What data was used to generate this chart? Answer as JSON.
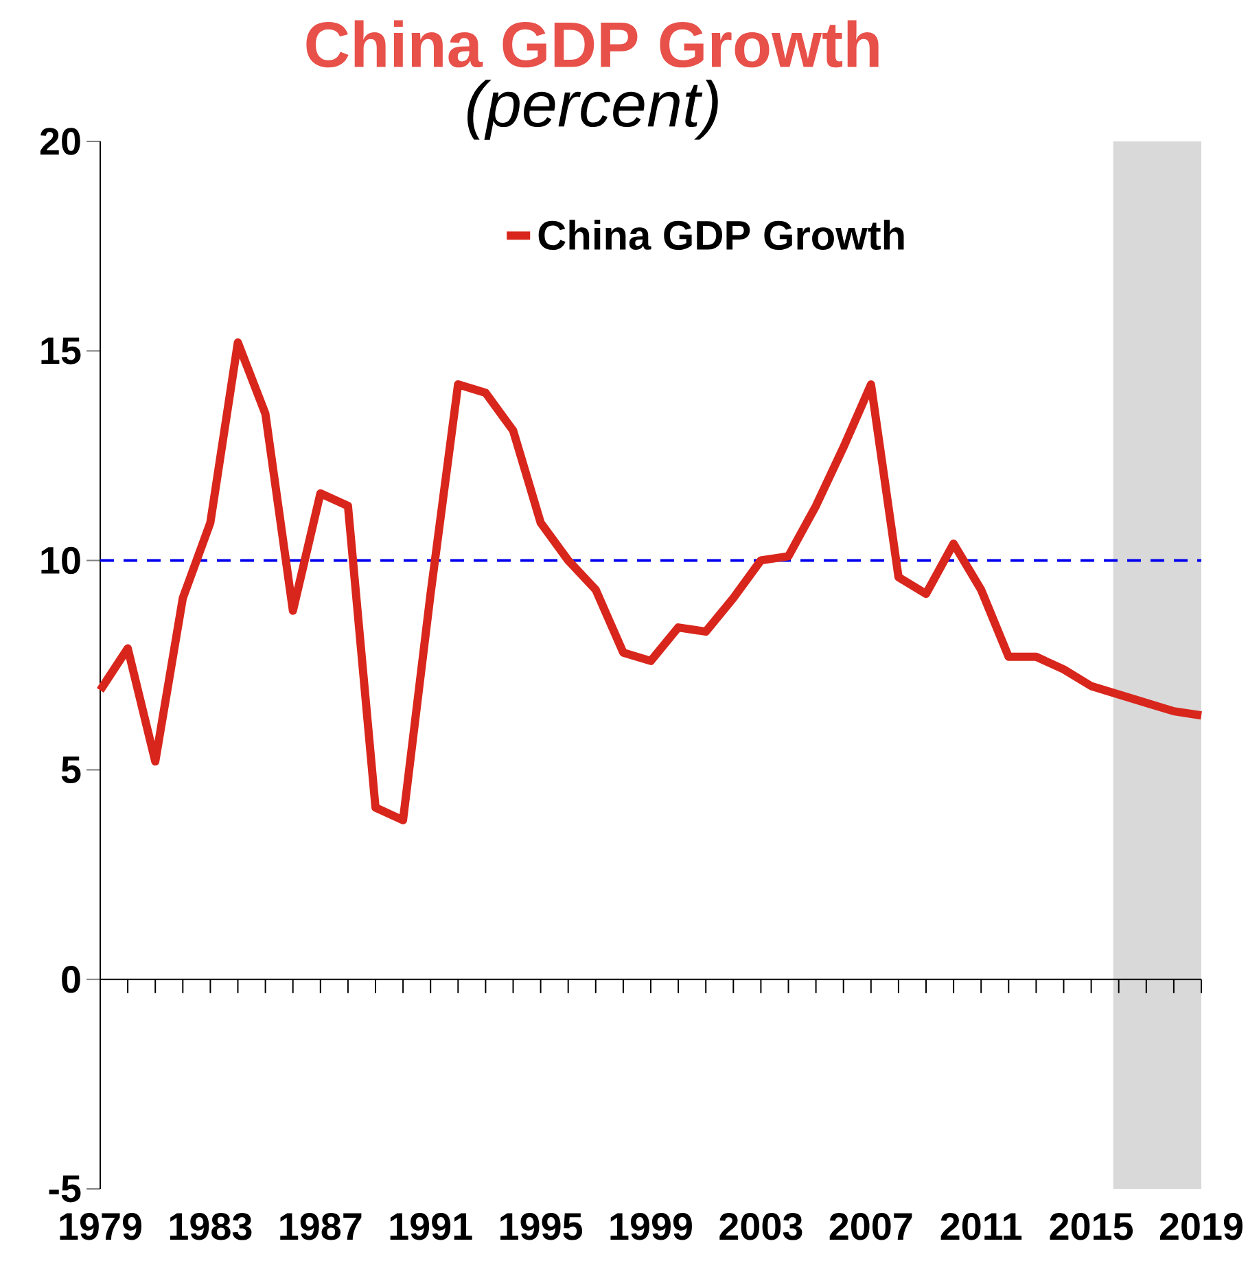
{
  "chart_data": {
    "type": "line",
    "title": "China GDP Growth",
    "subtitle": "(percent)",
    "x": [
      1979,
      1980,
      1981,
      1982,
      1983,
      1984,
      1985,
      1986,
      1987,
      1988,
      1989,
      1990,
      1991,
      1992,
      1993,
      1994,
      1995,
      1996,
      1997,
      1998,
      1999,
      2000,
      2001,
      2002,
      2003,
      2004,
      2005,
      2006,
      2007,
      2008,
      2009,
      2010,
      2011,
      2012,
      2013,
      2014,
      2015,
      2016,
      2017,
      2018,
      2019
    ],
    "series": [
      {
        "name": "China GDP Growth",
        "color": "#d9261c",
        "values": [
          6.9,
          7.9,
          5.2,
          9.1,
          10.9,
          15.2,
          13.5,
          8.8,
          11.6,
          11.3,
          4.1,
          3.8,
          9.2,
          14.2,
          14.0,
          13.1,
          10.9,
          10.0,
          9.3,
          7.8,
          7.6,
          8.4,
          8.3,
          9.1,
          10.0,
          10.1,
          11.3,
          12.7,
          14.2,
          9.6,
          9.2,
          10.4,
          9.3,
          7.7,
          7.7,
          7.4,
          7.0,
          6.8,
          6.6,
          6.4,
          6.3
        ]
      }
    ],
    "xlim": [
      1979,
      2019
    ],
    "ylim": [
      -5,
      20
    ],
    "xticks": [
      {
        "value": 1979,
        "label": "1979"
      },
      {
        "value": 1980,
        "label": null
      },
      {
        "value": 1981,
        "label": null
      },
      {
        "value": 1982,
        "label": null
      },
      {
        "value": 1983,
        "label": "1983"
      },
      {
        "value": 1984,
        "label": null
      },
      {
        "value": 1985,
        "label": null
      },
      {
        "value": 1986,
        "label": null
      },
      {
        "value": 1987,
        "label": "1987"
      },
      {
        "value": 1988,
        "label": null
      },
      {
        "value": 1989,
        "label": null
      },
      {
        "value": 1990,
        "label": null
      },
      {
        "value": 1991,
        "label": "1991"
      },
      {
        "value": 1992,
        "label": null
      },
      {
        "value": 1993,
        "label": null
      },
      {
        "value": 1994,
        "label": null
      },
      {
        "value": 1995,
        "label": "1995"
      },
      {
        "value": 1996,
        "label": null
      },
      {
        "value": 1997,
        "label": null
      },
      {
        "value": 1998,
        "label": null
      },
      {
        "value": 1999,
        "label": "1999"
      },
      {
        "value": 2000,
        "label": null
      },
      {
        "value": 2001,
        "label": null
      },
      {
        "value": 2002,
        "label": null
      },
      {
        "value": 2003,
        "label": "2003"
      },
      {
        "value": 2004,
        "label": null
      },
      {
        "value": 2005,
        "label": null
      },
      {
        "value": 2006,
        "label": null
      },
      {
        "value": 2007,
        "label": "2007"
      },
      {
        "value": 2008,
        "label": null
      },
      {
        "value": 2009,
        "label": null
      },
      {
        "value": 2010,
        "label": null
      },
      {
        "value": 2011,
        "label": "2011"
      },
      {
        "value": 2012,
        "label": null
      },
      {
        "value": 2013,
        "label": null
      },
      {
        "value": 2014,
        "label": null
      },
      {
        "value": 2015,
        "label": "2015"
      },
      {
        "value": 2016,
        "label": null
      },
      {
        "value": 2017,
        "label": null
      },
      {
        "value": 2018,
        "label": null
      },
      {
        "value": 2019,
        "label": "2019"
      }
    ],
    "yticks": [
      -5,
      0,
      5,
      10,
      15,
      20
    ],
    "ref_lines": [
      {
        "axis": "y",
        "value": 10,
        "color": "#0000ee",
        "line_style": "dashed"
      }
    ],
    "bands": [
      {
        "axis": "x",
        "from": 2015.8,
        "to": 2019,
        "color": "#d9d9d9"
      }
    ],
    "legend": "top"
  }
}
